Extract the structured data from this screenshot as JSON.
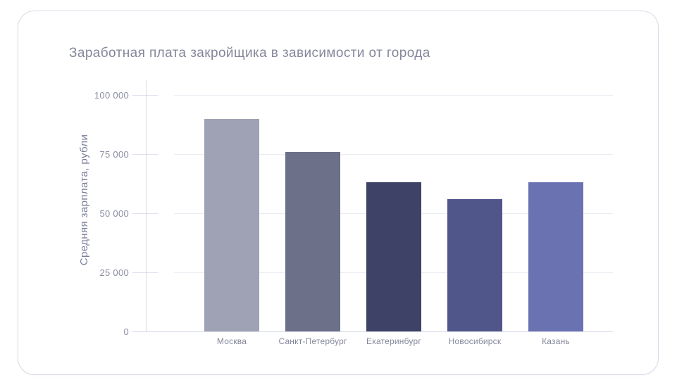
{
  "card": {
    "title": "Заработная плата закройщика в зависимости от города"
  },
  "chart_data": {
    "type": "bar",
    "title": "Заработная плата закройщика в зависимости от города",
    "xlabel": "",
    "ylabel": "Средняя зарплата, рубли",
    "categories": [
      "Москва",
      "Санкт-Петербург",
      "Екатеринбург",
      "Новосибирск",
      "Казань"
    ],
    "values": [
      90000,
      76000,
      63000,
      56000,
      63000
    ],
    "ylim": [
      0,
      100000
    ],
    "yticks": [
      0,
      25000,
      50000,
      75000,
      100000
    ],
    "ytick_labels": [
      "0",
      "25 000",
      "50 000",
      "75 000",
      "100 000"
    ],
    "bar_colors": [
      "#9fa2b4",
      "#6c7089",
      "#3e4266",
      "#51568a",
      "#6b72b2"
    ],
    "grid": true,
    "legend": false,
    "colors": {
      "title_text": "#84879a",
      "axis_text": "#8a8da0",
      "gridline": "#ebedf4",
      "axis_line": "#d8dbe7",
      "card_border": "#d8dbe5",
      "background": "#ffffff"
    }
  }
}
